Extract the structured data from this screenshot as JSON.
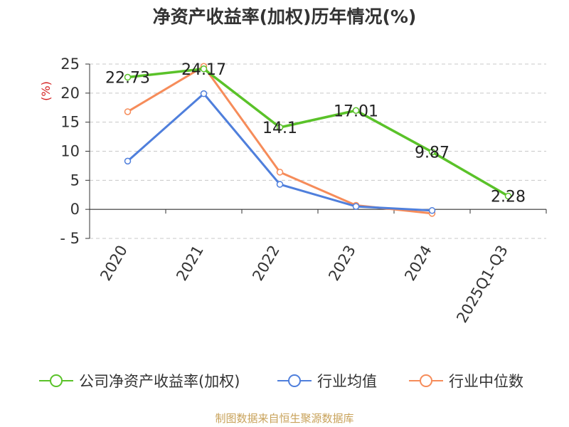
{
  "chart_data": {
    "type": "line",
    "title": "净资产收益率(加权)历年情况(%)",
    "ylabel": "(%)",
    "xlabel": "",
    "categories": [
      "2020",
      "2021",
      "2022",
      "2023",
      "2024",
      "2025Q1-Q3"
    ],
    "ylim": [
      -5,
      25
    ],
    "yticks": [
      -5,
      0,
      5,
      10,
      15,
      20,
      25
    ],
    "grid": true,
    "legend_position": "bottom",
    "series": [
      {
        "name": "公司净资产收益率(加权)",
        "color": "#5ac229",
        "values": [
          22.73,
          24.17,
          14.1,
          17.01,
          9.87,
          2.28
        ],
        "labels": [
          "22.73",
          "24.17",
          "14.1",
          "17.01",
          "9.87",
          "2.28"
        ]
      },
      {
        "name": "行业均值",
        "color": "#4f7fdc",
        "values": [
          8.3,
          19.9,
          4.3,
          0.5,
          -0.2,
          null
        ]
      },
      {
        "name": "行业中位数",
        "color": "#f68c5a",
        "values": [
          16.8,
          24.6,
          6.4,
          0.7,
          -0.7,
          null
        ]
      }
    ]
  },
  "source": "制图数据来自恒生聚源数据库"
}
